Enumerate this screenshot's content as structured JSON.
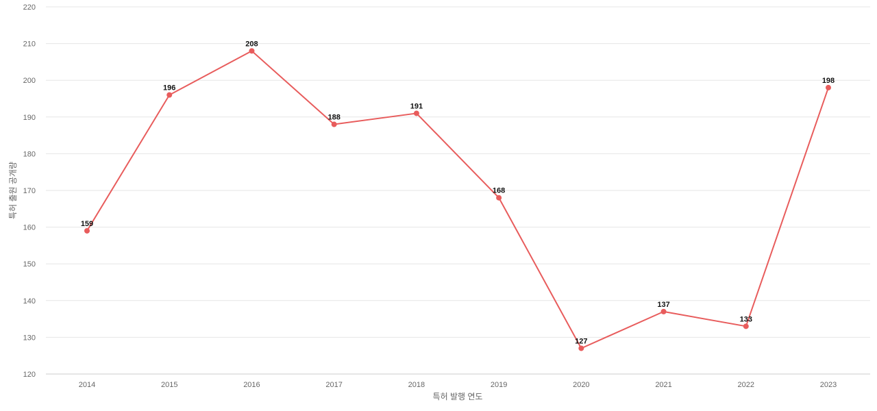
{
  "chart_data": {
    "type": "line",
    "title": "",
    "xlabel": "특허 발행 연도",
    "ylabel": "특허 출원 공개량",
    "categories": [
      "2014",
      "2015",
      "2016",
      "2017",
      "2018",
      "2019",
      "2020",
      "2021",
      "2022",
      "2023"
    ],
    "series": [
      {
        "values": [
          159,
          196,
          208,
          188,
          191,
          168,
          127,
          137,
          133,
          198
        ],
        "color": "#e85c5c"
      }
    ],
    "ylim": [
      120,
      220
    ],
    "yticks": [
      120,
      130,
      140,
      150,
      160,
      170,
      180,
      190,
      200,
      210,
      220
    ],
    "grid": true,
    "data_labels": true,
    "legend": "none"
  }
}
